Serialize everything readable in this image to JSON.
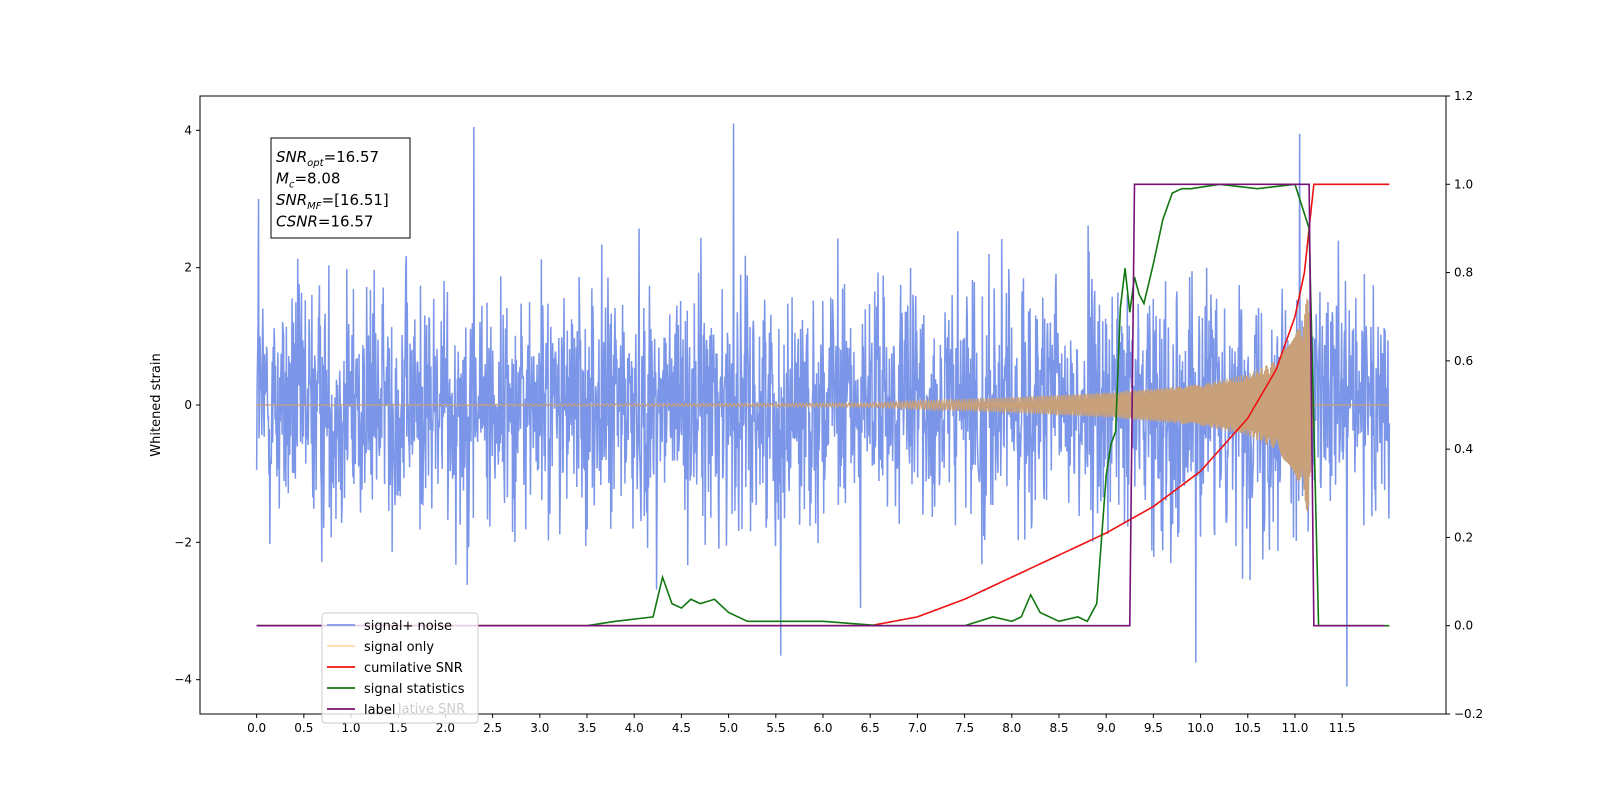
{
  "chart_data": {
    "type": "line",
    "ylabel": "Whitened strain",
    "left_axis": {
      "ylim": [
        -4.5,
        4.5
      ],
      "ticks": [
        -4,
        -2,
        0,
        2,
        4
      ],
      "tick_labels": [
        "−4",
        "−2",
        "0",
        "2",
        "4"
      ]
    },
    "right_axis": {
      "ylim": [
        -0.2,
        1.2
      ],
      "ticks": [
        -0.2,
        0.0,
        0.2,
        0.4,
        0.6,
        0.8,
        1.0,
        1.2
      ],
      "tick_labels": [
        "−0.2",
        "0.0",
        "0.2",
        "0.4",
        "0.6",
        "0.8",
        "1.0",
        "1.2"
      ]
    },
    "x_axis": {
      "xlim": [
        -0.6,
        12.6
      ],
      "ticks": [
        0.0,
        0.5,
        1.0,
        1.5,
        2.0,
        2.5,
        3.0,
        3.5,
        4.0,
        4.5,
        5.0,
        5.5,
        6.0,
        6.5,
        7.0,
        7.5,
        8.0,
        8.5,
        9.0,
        9.5,
        10.0,
        10.5,
        11.0,
        11.5
      ],
      "tick_labels": [
        "0.0",
        "0.5",
        "1.0",
        "1.5",
        "2.0",
        "2.5",
        "3.0",
        "3.5",
        "4.0",
        "4.5",
        "5.0",
        "5.5",
        "6.0",
        "6.5",
        "7.0",
        "7.5",
        "8.0",
        "8.5",
        "9.0",
        "9.5",
        "10.0",
        "10.5",
        "11.0",
        "11.5"
      ]
    },
    "legend": {
      "placement": "lower-left",
      "entries": [
        "signal+ noise",
        "signal only",
        "cumilative SNR",
        "signal statistics",
        "label"
      ],
      "partial_text": "lative SNR"
    },
    "annotation": {
      "lines": [
        {
          "sym": "SNR",
          "sub": "opt",
          "rest": "=16.57"
        },
        {
          "sym": "M",
          "sub": "c",
          "rest": "=8.08"
        },
        {
          "sym": "SNR",
          "sub": "MF",
          "rest": "=[16.51]"
        },
        {
          "sym": "CSNR",
          "sub": "",
          "rest": "=16.57"
        }
      ]
    },
    "colors": {
      "noise": "#7b96e8",
      "signal": "#c8a07a",
      "cumulative": "#ee1111",
      "stats": "#117711",
      "label": "#771177"
    },
    "series": [
      {
        "name": "signal+ noise",
        "axis": "left",
        "style": "noise-band",
        "x_range": [
          0.0,
          12.0
        ],
        "typical_amplitude": 2.0,
        "peaks": [
          [
            0.02,
            3.0
          ],
          [
            2.3,
            4.05
          ],
          [
            5.05,
            4.1
          ],
          [
            11.05,
            3.95
          ],
          [
            11.55,
            -4.1
          ],
          [
            9.95,
            -3.75
          ],
          [
            5.55,
            -3.65
          ]
        ]
      },
      {
        "name": "signal only",
        "axis": "left",
        "style": "chirp",
        "x_range": [
          0.0,
          12.0
        ],
        "envelope": [
          [
            0.0,
            0.0
          ],
          [
            6.5,
            0.03
          ],
          [
            7.0,
            0.06
          ],
          [
            8.0,
            0.11
          ],
          [
            9.0,
            0.18
          ],
          [
            10.0,
            0.3
          ],
          [
            10.5,
            0.45
          ],
          [
            10.8,
            0.65
          ],
          [
            11.0,
            1.0
          ],
          [
            11.1,
            1.4
          ],
          [
            11.15,
            1.7
          ],
          [
            11.2,
            0.0
          ],
          [
            12.0,
            0.0
          ]
        ]
      },
      {
        "name": "cumilative SNR",
        "axis": "right",
        "x": [
          0.0,
          6.5,
          7.0,
          7.5,
          8.0,
          8.5,
          9.0,
          9.5,
          10.0,
          10.5,
          10.8,
          11.0,
          11.1,
          11.15,
          11.2,
          11.25,
          12.0
        ],
        "values": [
          0.0,
          0.0,
          0.02,
          0.06,
          0.11,
          0.16,
          0.21,
          0.27,
          0.35,
          0.47,
          0.58,
          0.7,
          0.8,
          0.9,
          1.0,
          1.0,
          1.0
        ]
      },
      {
        "name": "signal statistics",
        "axis": "right",
        "x": [
          0.0,
          3.5,
          3.8,
          4.2,
          4.3,
          4.4,
          4.5,
          4.6,
          4.7,
          4.85,
          5.0,
          5.2,
          5.6,
          6.0,
          6.6,
          7.5,
          7.8,
          8.0,
          8.1,
          8.2,
          8.3,
          8.5,
          8.7,
          8.8,
          8.9,
          9.0,
          9.05,
          9.1,
          9.15,
          9.2,
          9.25,
          9.3,
          9.35,
          9.4,
          9.5,
          9.6,
          9.7,
          9.8,
          9.9,
          10.2,
          10.6,
          11.0,
          11.15,
          11.25,
          11.35,
          12.0
        ],
        "values": [
          0.0,
          0.0,
          0.01,
          0.02,
          0.11,
          0.05,
          0.04,
          0.06,
          0.05,
          0.06,
          0.03,
          0.01,
          0.01,
          0.01,
          0.0,
          0.0,
          0.02,
          0.01,
          0.02,
          0.07,
          0.03,
          0.01,
          0.02,
          0.01,
          0.05,
          0.34,
          0.41,
          0.44,
          0.72,
          0.81,
          0.71,
          0.79,
          0.75,
          0.73,
          0.82,
          0.92,
          0.98,
          0.99,
          0.99,
          1.0,
          0.99,
          1.0,
          0.9,
          0.0,
          0.0,
          0.0
        ]
      },
      {
        "name": "label",
        "axis": "right",
        "x": [
          0.0,
          9.25,
          9.3,
          11.15,
          11.2,
          11.95
        ],
        "values": [
          0.0,
          0.0,
          1.0,
          1.0,
          0.0,
          0.0
        ]
      }
    ]
  }
}
